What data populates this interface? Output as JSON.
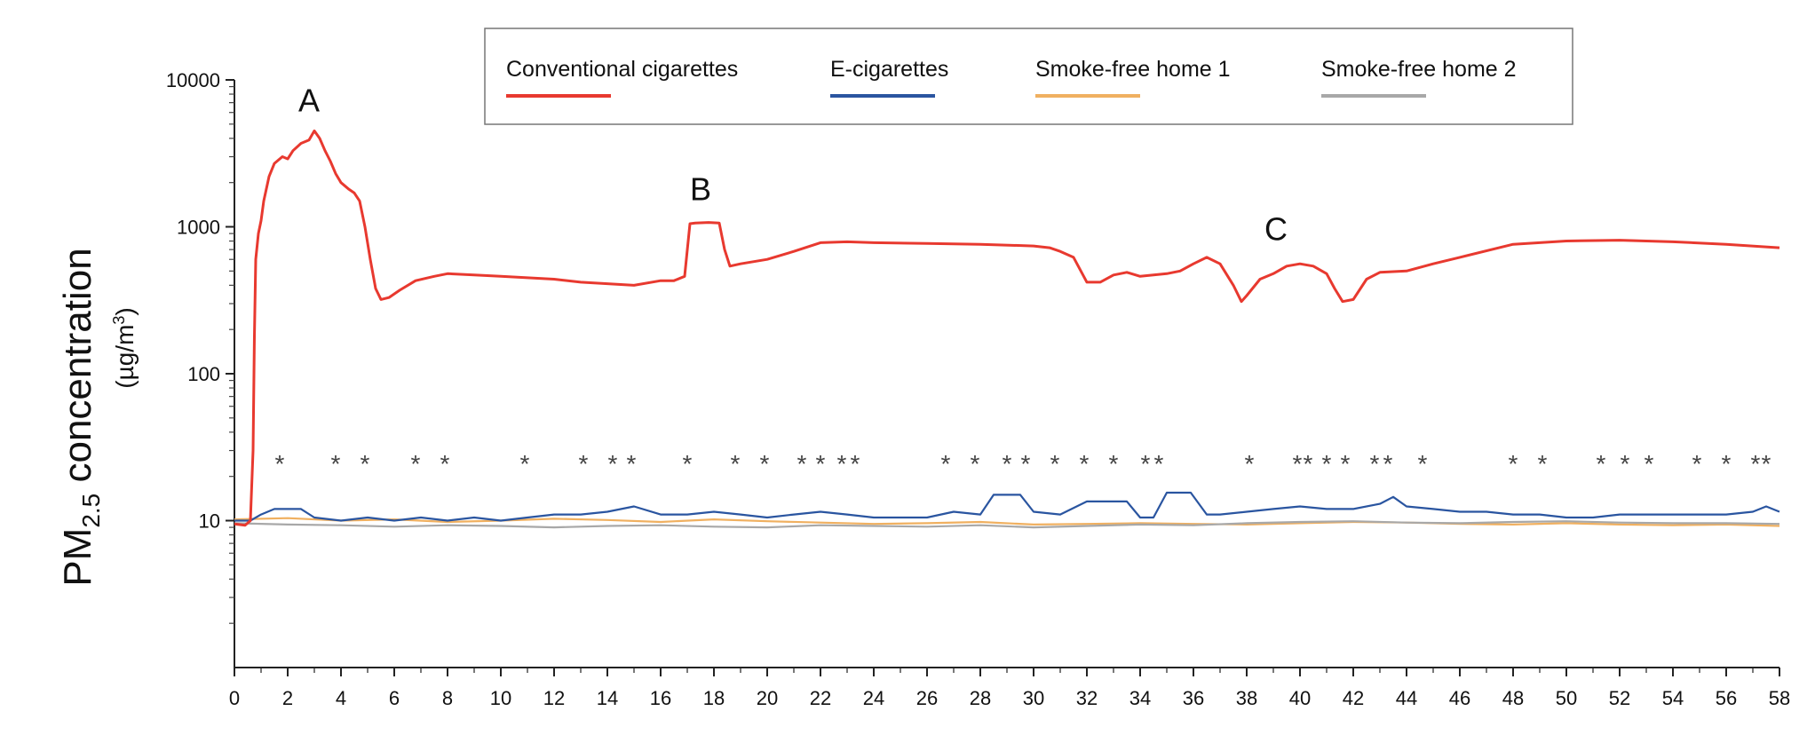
{
  "chart_data": {
    "type": "line",
    "title": "",
    "xlabel": "",
    "ylabel": {
      "main": "PM",
      "subscript": "2.5",
      "main_rest": " concentration",
      "unit_prefix": "(µg/m",
      "unit_sup": "3",
      "unit_suffix": ")"
    },
    "y_scale": "log",
    "ylim": [
      1,
      10000
    ],
    "xlim": [
      0,
      58
    ],
    "x_ticks": [
      0,
      2,
      4,
      6,
      8,
      10,
      12,
      14,
      16,
      18,
      20,
      22,
      24,
      26,
      28,
      30,
      32,
      34,
      36,
      38,
      40,
      42,
      44,
      46,
      48,
      50,
      52,
      54,
      56,
      58
    ],
    "y_ticks": [
      10,
      100,
      1000,
      10000
    ],
    "grid": false,
    "legend": {
      "position": "top-right",
      "items": [
        {
          "name": "Conventional cigarettes",
          "color": "#e8392f"
        },
        {
          "name": "E-cigarettes",
          "color": "#2a55a0"
        },
        {
          "name": "Smoke-free home 1",
          "color": "#f0b060"
        },
        {
          "name": "Smoke-free home 2",
          "color": "#a8a8a8"
        }
      ]
    },
    "annotations": [
      {
        "text": "A",
        "x": 2.8,
        "y": 7200
      },
      {
        "text": "B",
        "x": 17.5,
        "y": 1800
      },
      {
        "text": "C",
        "x": 39.1,
        "y": 960
      }
    ],
    "star_marker": "*",
    "star_y": 26,
    "stars": [
      1.7,
      3.8,
      4.9,
      6.8,
      7.9,
      10.9,
      13.1,
      14.2,
      14.9,
      17,
      18.8,
      19.9,
      21.3,
      22,
      22.8,
      23.3,
      26.7,
      27.8,
      29,
      29.7,
      30.8,
      31.9,
      33,
      34.2,
      34.7,
      38.1,
      39.9,
      40.3,
      41,
      41.7,
      42.8,
      43.3,
      44.6,
      48,
      49.1,
      51.3,
      52.2,
      53.1,
      54.9,
      56,
      57.1,
      57.5
    ],
    "series": [
      {
        "name": "Conventional cigarettes",
        "color": "#e8392f",
        "x": [
          0,
          0.4,
          0.6,
          0.7,
          0.75,
          0.8,
          0.9,
          1.0,
          1.1,
          1.3,
          1.5,
          1.8,
          2.0,
          2.2,
          2.5,
          2.8,
          3.0,
          3.2,
          3.4,
          3.6,
          3.8,
          4.0,
          4.3,
          4.5,
          4.7,
          4.9,
          5.1,
          5.3,
          5.5,
          5.8,
          6.2,
          6.8,
          7.5,
          8,
          9,
          10,
          11,
          12,
          13,
          14,
          15,
          16,
          16.5,
          16.9,
          17.1,
          17.3,
          17.8,
          18.2,
          18.4,
          18.6,
          19,
          20,
          21,
          22,
          23,
          24,
          26,
          28,
          30,
          30.6,
          31,
          31.5,
          32,
          32.5,
          33,
          33.5,
          34,
          34.5,
          35,
          35.5,
          36,
          36.5,
          37,
          37.5,
          37.8,
          38,
          38.5,
          39,
          39.5,
          40,
          40.5,
          41,
          41.3,
          41.6,
          42,
          42.5,
          43,
          44,
          45,
          46,
          48,
          50,
          52,
          54,
          56,
          58
        ],
        "y": [
          9.5,
          9.3,
          10,
          30,
          180,
          600,
          900,
          1100,
          1500,
          2200,
          2700,
          3000,
          2900,
          3300,
          3700,
          3900,
          4500,
          4000,
          3300,
          2800,
          2300,
          2000,
          1800,
          1700,
          1500,
          1000,
          600,
          380,
          320,
          330,
          370,
          430,
          460,
          480,
          470,
          460,
          450,
          440,
          420,
          410,
          400,
          430,
          430,
          460,
          1050,
          1060,
          1070,
          1060,
          700,
          540,
          560,
          600,
          680,
          780,
          790,
          780,
          770,
          760,
          740,
          720,
          680,
          620,
          420,
          420,
          470,
          490,
          460,
          470,
          480,
          500,
          560,
          620,
          560,
          400,
          310,
          340,
          440,
          480,
          540,
          560,
          540,
          480,
          380,
          310,
          320,
          440,
          490,
          500,
          560,
          620,
          760,
          800,
          810,
          790,
          760,
          720
        ]
      },
      {
        "name": "E-cigarettes",
        "color": "#2a55a0",
        "x": [
          0,
          0.6,
          1,
          1.5,
          2,
          2.5,
          3,
          4,
          5,
          6,
          7,
          8,
          9,
          10,
          11,
          12,
          13,
          14,
          15,
          16,
          17,
          18,
          19,
          20,
          21,
          22,
          23,
          24,
          25,
          26,
          27,
          28,
          28.5,
          29.5,
          30,
          31,
          32,
          32.5,
          33.5,
          34,
          34.5,
          35,
          35.9,
          36.5,
          37,
          38,
          39,
          40,
          41,
          42,
          43,
          43.5,
          44,
          45,
          46,
          47,
          48,
          49,
          50,
          51,
          52,
          53,
          54,
          55,
          56,
          57,
          57.5,
          58
        ],
        "y": [
          10,
          10,
          11,
          12,
          12,
          12,
          10.5,
          10,
          10.5,
          10,
          10.5,
          10,
          10.5,
          10,
          10.5,
          11,
          11,
          11.5,
          12.5,
          11,
          11,
          11.5,
          11,
          10.5,
          11,
          11.5,
          11,
          10.5,
          10.5,
          10.5,
          11.5,
          11,
          15,
          15,
          11.5,
          11,
          13.5,
          13.5,
          13.5,
          10.5,
          10.5,
          15.5,
          15.5,
          11,
          11,
          11.5,
          12,
          12.5,
          12,
          12,
          13,
          14.5,
          12.5,
          12,
          11.5,
          11.5,
          11,
          11,
          10.5,
          10.5,
          11,
          11,
          11,
          11,
          11,
          11.5,
          12.5,
          11.5
        ]
      },
      {
        "name": "Smoke-free home 1",
        "color": "#f0b060",
        "x": [
          0,
          2,
          4,
          6,
          8,
          10,
          12,
          14,
          16,
          18,
          20,
          22,
          24,
          26,
          28,
          30,
          32,
          34,
          36,
          38,
          40,
          42,
          44,
          46,
          48,
          50,
          52,
          54,
          56,
          58
        ],
        "y": [
          10.2,
          10.4,
          10,
          10.2,
          9.8,
          10,
          10.3,
          10.1,
          9.8,
          10.2,
          9.9,
          9.7,
          9.5,
          9.6,
          9.8,
          9.4,
          9.5,
          9.6,
          9.5,
          9.4,
          9.6,
          9.8,
          9.7,
          9.5,
          9.4,
          9.6,
          9.4,
          9.3,
          9.4,
          9.2
        ]
      },
      {
        "name": "Smoke-free home 2",
        "color": "#a8a8a8",
        "x": [
          0,
          2,
          4,
          6,
          8,
          10,
          12,
          14,
          16,
          18,
          20,
          22,
          24,
          26,
          28,
          30,
          32,
          34,
          36,
          38,
          40,
          42,
          44,
          46,
          48,
          50,
          52,
          54,
          56,
          58
        ],
        "y": [
          9.6,
          9.4,
          9.3,
          9.1,
          9.3,
          9.2,
          9.0,
          9.2,
          9.3,
          9.1,
          9.0,
          9.3,
          9.2,
          9.1,
          9.3,
          9.0,
          9.2,
          9.4,
          9.3,
          9.6,
          9.8,
          9.9,
          9.7,
          9.6,
          9.8,
          9.9,
          9.7,
          9.6,
          9.6,
          9.5
        ]
      }
    ]
  }
}
